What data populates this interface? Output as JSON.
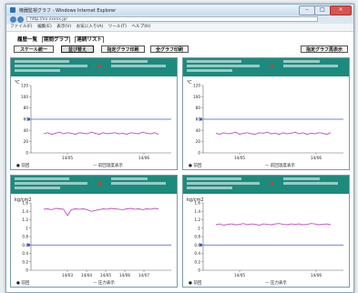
{
  "window": {
    "title": "機器監視グラフ - Windows Internet Explorer",
    "address": "http://xx.xxxxx.jp/"
  },
  "menu": [
    "ファイル(F)",
    "編集(E)",
    "表示(V)",
    "お気に入り(A)",
    "ツール(T)",
    "ヘルプ(H)"
  ],
  "tabs": [
    "履歴一覧",
    "期間グラフ",
    "連続リスト"
  ],
  "toolbar": {
    "scale": "スケール統一",
    "reorder": "並び替え",
    "print_selected": "指定グラフ印刷",
    "print_all": "全グラフ印刷",
    "redisplay": "指定グラフ再表示"
  },
  "colors": {
    "header": "#1d8a7e",
    "series": "#c04ec4",
    "threshold": "#3b5bd6",
    "window_border": "#8aa7c0"
  },
  "panels": [
    {
      "unit": "℃",
      "legend": "● 前回",
      "legend2": "— 前回温度表示",
      "chart_data": {
        "type": "line",
        "yticks": [
          0,
          20,
          40,
          60,
          80,
          100,
          120
        ],
        "ylim": [
          0,
          120
        ],
        "xticks": [
          "14/05",
          "14/06"
        ],
        "threshold": 60,
        "series": [
          {
            "values": [
              34,
              36,
              33,
              35,
              37,
              34,
              36,
              35,
              33,
              36,
              35,
              34,
              37,
              35,
              33,
              36,
              34,
              35,
              36,
              34,
              35,
              33,
              36,
              35,
              34,
              37,
              35,
              34,
              36,
              33
            ]
          }
        ]
      }
    },
    {
      "unit": "℃",
      "legend": "● 前回",
      "legend2": "— 前回温度表示",
      "chart_data": {
        "type": "line",
        "yticks": [
          0,
          20,
          40,
          60,
          80,
          100,
          120
        ],
        "ylim": [
          0,
          120
        ],
        "xticks": [
          "14/05",
          "14/06"
        ],
        "threshold": 60,
        "series": [
          {
            "values": [
              35,
              33,
              36,
              34,
              35,
              37,
              33,
              35,
              36,
              34,
              33,
              36,
              35,
              37,
              34,
              35,
              33,
              36,
              34,
              35,
              37,
              34,
              36,
              33,
              35,
              34,
              36,
              35,
              33,
              36
            ]
          }
        ]
      }
    },
    {
      "unit": "kg/cm2",
      "legend": "● 前回",
      "legend2": "— 圧力表示",
      "chart_data": {
        "type": "line",
        "yticks": [
          0,
          0.2,
          0.4,
          0.6,
          0.8,
          1.0,
          1.2,
          1.4,
          1.6
        ],
        "ylim": [
          0,
          1.6
        ],
        "xticks": [
          "14/03",
          "14/04",
          "14/05",
          "14/06",
          "14/07"
        ],
        "threshold": 0.6,
        "series": [
          {
            "values": [
              1.45,
              1.46,
              1.44,
              1.47,
              1.46,
              1.45,
              1.3,
              1.44,
              1.46,
              1.45,
              1.46,
              1.44,
              1.4,
              1.42,
              1.44,
              1.46,
              1.45,
              1.47,
              1.46,
              1.45,
              1.44,
              1.46,
              1.47,
              1.45,
              1.46,
              1.44,
              1.46,
              1.45,
              1.47,
              1.46
            ]
          }
        ]
      }
    },
    {
      "unit": "kg/cm2",
      "legend": "● 前回",
      "legend2": "— 圧力表示",
      "chart_data": {
        "type": "line",
        "yticks": [
          0,
          0.2,
          0.4,
          0.6,
          0.8,
          1.0,
          1.2,
          1.4,
          1.6
        ],
        "ylim": [
          0,
          1.6
        ],
        "xticks": [
          "14/05",
          "14/06"
        ],
        "threshold": 0.6,
        "series": [
          {
            "values": [
              1.08,
              1.1,
              1.07,
              1.09,
              1.1,
              1.08,
              1.09,
              1.11,
              1.08,
              1.1,
              1.09,
              1.07,
              1.1,
              1.09,
              1.08,
              1.1,
              1.11,
              1.09,
              1.08,
              1.1,
              1.09,
              1.1,
              1.08,
              1.09,
              1.11,
              1.1,
              1.08,
              1.09,
              1.1,
              1.08
            ]
          }
        ]
      }
    }
  ]
}
